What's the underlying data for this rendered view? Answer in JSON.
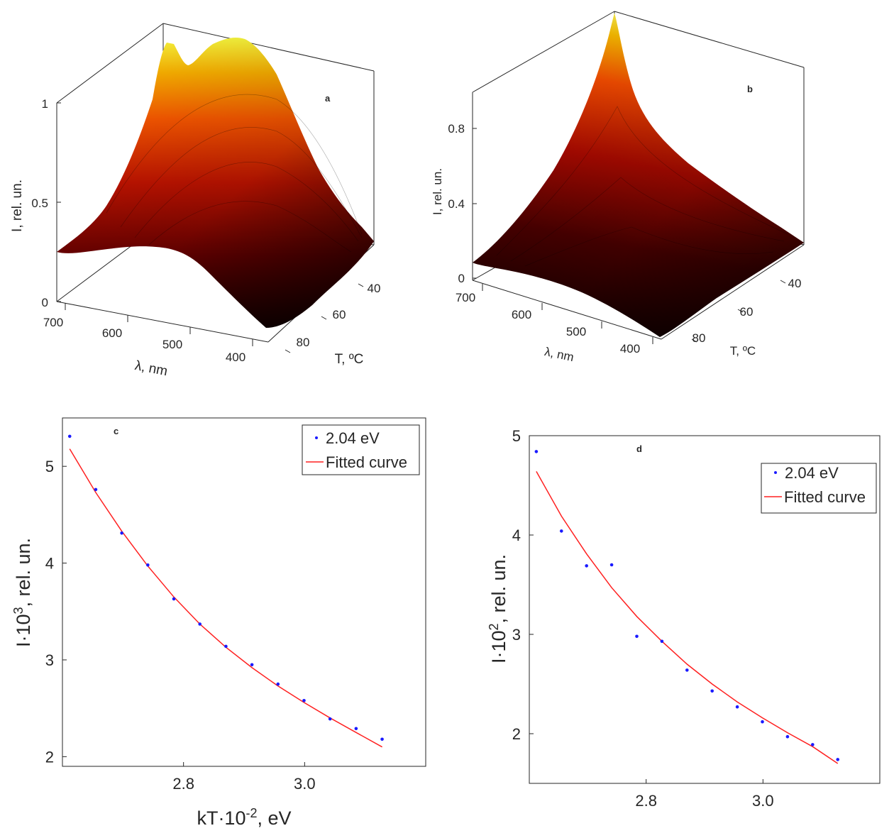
{
  "chart_data": [
    {
      "id": "a",
      "type": "surface3d",
      "panel_label": "a",
      "xlabel": "λ, nm",
      "ylabel": "T, ºC",
      "zlabel": "I, rel. un.",
      "x_ticks": [
        "700",
        "600",
        "500",
        "400"
      ],
      "y_ticks": [
        "40",
        "60",
        "80"
      ],
      "z_ticks": [
        "0",
        "0.5",
        "1"
      ],
      "xlim": [
        380,
        720
      ],
      "ylim": [
        25,
        95
      ],
      "zlim": [
        0,
        1
      ],
      "colormap": "hot",
      "ridge_profile": {
        "wavelength_nm": [
          720,
          680,
          640,
          600,
          560,
          520,
          480,
          440,
          400,
          380
        ],
        "I_rel_at_low_T": [
          0.27,
          0.55,
          0.93,
          1.0,
          0.83,
          0.6,
          0.42,
          0.3,
          0.2,
          0.18
        ],
        "I_rel_at_high_T": [
          0.24,
          0.28,
          0.3,
          0.28,
          0.2,
          0.12,
          0.06,
          0.03,
          0.02,
          0.02
        ]
      }
    },
    {
      "id": "b",
      "type": "surface3d",
      "panel_label": "b",
      "xlabel": "λ, nm",
      "ylabel": "T, ºC",
      "zlabel": "I, rel. un.",
      "x_ticks": [
        "700",
        "600",
        "500",
        "400"
      ],
      "y_ticks": [
        "40",
        "60",
        "80"
      ],
      "z_ticks": [
        "0",
        "0.4",
        "0.8"
      ],
      "xlim": [
        380,
        720
      ],
      "ylim": [
        25,
        95
      ],
      "zlim": [
        0,
        1
      ],
      "colormap": "hot",
      "ridge_profile": {
        "wavelength_nm": [
          720,
          680,
          640,
          600,
          560,
          520,
          480,
          440,
          400,
          380
        ],
        "I_rel_at_low_T": [
          1.0,
          0.74,
          0.56,
          0.45,
          0.37,
          0.3,
          0.24,
          0.19,
          0.15,
          0.12
        ],
        "I_rel_at_high_T": [
          0.07,
          0.06,
          0.05,
          0.04,
          0.03,
          0.02,
          0.015,
          0.01,
          0.01,
          0.01
        ]
      }
    },
    {
      "id": "c",
      "type": "scatter",
      "panel_label": "c",
      "xlabel": "kT·10",
      "xlabel_exp": "-2",
      "xlabel_unit": ", eV",
      "ylabel": "I·10",
      "ylabel_exp": "3",
      "ylabel_unit": ", rel. un.",
      "xlim": [
        2.6,
        3.2
      ],
      "ylim": [
        1.9,
        5.5
      ],
      "x_ticks": [
        2.8,
        3.0
      ],
      "x_tick_labels": [
        "2.8",
        "3.0"
      ],
      "y_ticks": [
        2,
        3,
        4,
        5
      ],
      "y_tick_labels": [
        "2",
        "3",
        "4",
        "5"
      ],
      "series": [
        {
          "name": "2.04 eV",
          "kind": "points",
          "color": "#1a1aff",
          "x": [
            2.612,
            2.655,
            2.698,
            2.741,
            2.784,
            2.827,
            2.87,
            2.913,
            2.956,
            2.999,
            3.042,
            3.085,
            3.128
          ],
          "y": [
            5.31,
            4.76,
            4.31,
            3.98,
            3.63,
            3.37,
            3.14,
            2.95,
            2.75,
            2.58,
            2.39,
            2.29,
            2.18
          ]
        },
        {
          "name": "Fitted curve",
          "kind": "line",
          "color": "#ff2020",
          "x": [
            2.612,
            2.655,
            2.698,
            2.741,
            2.784,
            2.827,
            2.87,
            2.913,
            2.956,
            2.999,
            3.042,
            3.085,
            3.128
          ],
          "y": [
            5.18,
            4.73,
            4.33,
            3.97,
            3.65,
            3.37,
            3.13,
            2.92,
            2.73,
            2.56,
            2.4,
            2.25,
            2.1
          ]
        }
      ]
    },
    {
      "id": "d",
      "type": "scatter",
      "panel_label": "d",
      "xlabel": "",
      "ylabel": "I·10",
      "ylabel_exp": "2",
      "ylabel_unit": ", rel. un.",
      "xlim": [
        2.6,
        3.2
      ],
      "ylim": [
        1.5,
        5.0
      ],
      "x_ticks": [
        2.8,
        3.0
      ],
      "x_tick_labels": [
        "2.8",
        "3.0"
      ],
      "y_ticks": [
        2,
        3,
        4,
        5
      ],
      "y_tick_labels": [
        "2",
        "3",
        "4",
        "5"
      ],
      "series": [
        {
          "name": "2.04 eV",
          "kind": "points",
          "color": "#1a1aff",
          "x": [
            2.612,
            2.655,
            2.698,
            2.741,
            2.784,
            2.827,
            2.87,
            2.913,
            2.956,
            2.999,
            3.042,
            3.085,
            3.128
          ],
          "y": [
            4.84,
            4.04,
            3.69,
            3.7,
            2.98,
            2.93,
            2.64,
            2.43,
            2.27,
            2.12,
            1.97,
            1.89,
            1.74
          ]
        },
        {
          "name": "Fitted curve",
          "kind": "line",
          "color": "#ff2020",
          "x": [
            2.612,
            2.655,
            2.698,
            2.741,
            2.784,
            2.827,
            2.87,
            2.913,
            2.956,
            2.999,
            3.042,
            3.085,
            3.128
          ],
          "y": [
            4.64,
            4.19,
            3.81,
            3.47,
            3.18,
            2.93,
            2.7,
            2.5,
            2.32,
            2.16,
            2.01,
            1.87,
            1.7
          ]
        }
      ]
    }
  ]
}
